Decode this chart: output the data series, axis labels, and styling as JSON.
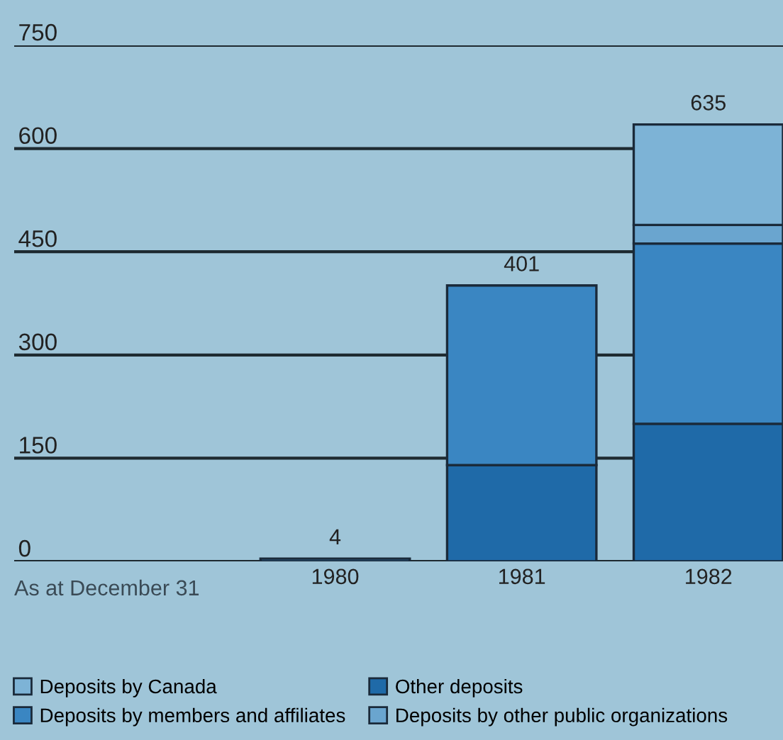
{
  "chart_data": {
    "type": "bar",
    "stacked": true,
    "categories": [
      "1980",
      "1981",
      "1982"
    ],
    "series": [
      {
        "name": "Other deposits",
        "color": "#1f6aa8",
        "values": [
          null,
          140,
          200
        ]
      },
      {
        "name": "Deposits by members and affiliates",
        "color": "#3a86c2",
        "values": [
          4,
          261,
          262
        ]
      },
      {
        "name": "Deposits by other public organizations",
        "color": "#6aa5cf",
        "values": [
          null,
          null,
          27
        ]
      },
      {
        "name": "Deposits by Canada",
        "color": "#7db3d6",
        "values": [
          null,
          null,
          146
        ]
      }
    ],
    "totals": [
      "4",
      "401",
      "635"
    ],
    "ylim": [
      0,
      750
    ],
    "yticks": [
      0,
      150,
      300,
      450,
      600,
      750
    ],
    "grid": "y",
    "legend": "bottom",
    "annotations": [
      "As at December 31"
    ]
  }
}
